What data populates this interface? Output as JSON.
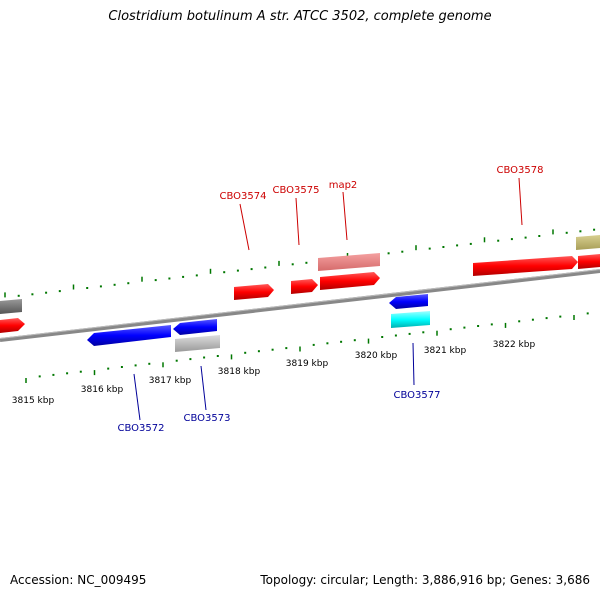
{
  "title": "Clostridium botulinum A str. ATCC 3502, complete genome",
  "footer": {
    "accession": "Accession: NC_009495",
    "stats": "Topology: circular; Length: 3,886,916 bp; Genes: 3,686"
  },
  "colors": {
    "forward_gene": "#ff0000",
    "reverse_gene": "#0000ff",
    "forward_label": "#cc0000",
    "reverse_label": "#000099",
    "tick": "#007700",
    "backbone": "#888888"
  },
  "scale_labels": [
    "3815 kbp",
    "3816 kbp",
    "3817 kbp",
    "3818 kbp",
    "3819 kbp",
    "3820 kbp",
    "3821 kbp",
    "3822 kbp"
  ],
  "gene_labels": {
    "forward": [
      "CBO3574",
      "CBO3575",
      "map2",
      "CBO3578"
    ],
    "reverse": [
      "CBO3572",
      "CBO3573",
      "CBO3577"
    ]
  }
}
